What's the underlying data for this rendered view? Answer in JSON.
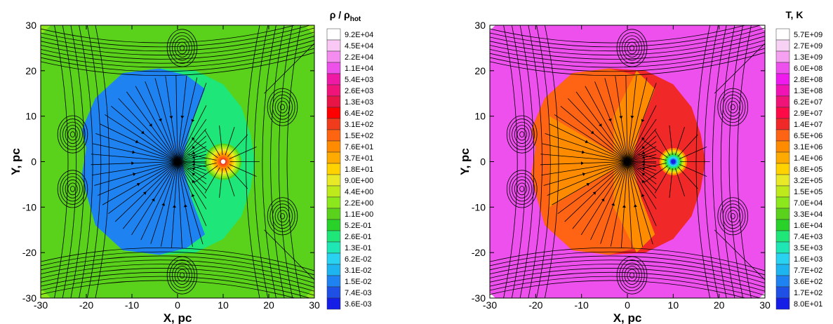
{
  "chart_data": [
    {
      "type": "heatmap",
      "title": "",
      "colorbar_title": "ρ / ρ",
      "colorbar_title_subscript": "hot",
      "xlabel": "X, pc",
      "ylabel": "Y, pc",
      "xlim": [
        -30,
        30
      ],
      "ylim": [
        -30,
        30
      ],
      "xticks": [
        "-30",
        "-20",
        "-10",
        "0",
        "10",
        "20",
        "30"
      ],
      "yticks": [
        "30",
        "20",
        "10",
        "0",
        "-10",
        "-20",
        "-30"
      ],
      "colorbar_levels": [
        "9.2E+04",
        "4.5E+04",
        "2.2E+04",
        "1.1E+04",
        "5.4E+03",
        "2.6E+03",
        "1.3E+03",
        "6.4E+02",
        "3.1E+02",
        "1.5E+02",
        "7.6E+01",
        "3.7E+01",
        "1.8E+01",
        "9.0E+00",
        "4.4E+00",
        "2.2E+00",
        "1.1E+00",
        "5.2E-01",
        "2.6E-01",
        "1.3E-01",
        "6.2E-02",
        "3.1E-02",
        "1.5E-02",
        "7.4E-03",
        "3.6E-03"
      ],
      "colorbar_colors": [
        "#ffffff",
        "#fac8f5",
        "#f58cf0",
        "#ee50ea",
        "#ee1aa5",
        "#f0147a",
        "#e81446",
        "#ff0000",
        "#f03c1c",
        "#ff6410",
        "#ff8c00",
        "#ffaa00",
        "#ffd200",
        "#e8ea28",
        "#beea1c",
        "#8ce81c",
        "#5ad21c",
        "#28d228",
        "#1ee678",
        "#1ee6b4",
        "#28d2f0",
        "#1eb4f0",
        "#1e82f0",
        "#1e50e6",
        "#141ee6"
      ],
      "regions": {
        "background": "1.1E+00",
        "cavity": "1.5E-02",
        "bow_shell": "2.6E-01",
        "core": "9.2E+04"
      },
      "sink_x": 0,
      "sink_y": 0,
      "blob_x": 10,
      "blob_y": 0,
      "vortices": [
        [
          23,
          12
        ],
        [
          23,
          -12
        ],
        [
          1,
          25
        ],
        [
          1,
          -25
        ],
        [
          -23,
          6
        ],
        [
          -23,
          -6
        ]
      ]
    },
    {
      "type": "heatmap",
      "title": "",
      "colorbar_title": "T, K",
      "xlabel": "X, pc",
      "ylabel": "Y, pc",
      "xlim": [
        -30,
        30
      ],
      "ylim": [
        -30,
        30
      ],
      "xticks": [
        "-30",
        "-20",
        "-10",
        "0",
        "10",
        "20",
        "30"
      ],
      "yticks": [
        "30",
        "20",
        "10",
        "0",
        "-10",
        "-20",
        "-30"
      ],
      "colorbar_levels": [
        "5.7E+09",
        "2.7E+09",
        "1.3E+09",
        "6.0E+08",
        "2.8E+08",
        "1.3E+08",
        "6.2E+07",
        "2.9E+07",
        "1.4E+07",
        "6.5E+06",
        "3.1E+06",
        "1.4E+06",
        "6.8E+05",
        "3.2E+05",
        "1.5E+05",
        "7.0E+04",
        "3.3E+04",
        "1.6E+04",
        "7.4E+03",
        "3.5E+03",
        "1.6E+03",
        "7.7E+02",
        "3.6E+02",
        "1.7E+02",
        "8.0E+01"
      ],
      "colorbar_colors": [
        "#ffffff",
        "#f8d2f4",
        "#f5a0f0",
        "#ee50ee",
        "#ee1aee",
        "#f014b4",
        "#f01478",
        "#ff0a46",
        "#f02828",
        "#ff6414",
        "#ff8c00",
        "#ffaa00",
        "#ffd200",
        "#e8ea28",
        "#beea1c",
        "#8ce81c",
        "#5ad21c",
        "#28d228",
        "#1ee678",
        "#1ee6b4",
        "#28d2f0",
        "#1eb4f0",
        "#1e82f0",
        "#1e50e6",
        "#141ee6"
      ],
      "regions": {
        "background": "6.0E+08",
        "cavity": "1.4E+07",
        "inner_fan": "3.1E+06",
        "core": "8.0E+01"
      },
      "sink_x": 0,
      "sink_y": 0,
      "blob_x": 10,
      "blob_y": 0,
      "vortices": [
        [
          23,
          12
        ],
        [
          23,
          -12
        ],
        [
          1,
          25
        ],
        [
          1,
          -25
        ],
        [
          -23,
          6
        ],
        [
          -23,
          -6
        ]
      ]
    }
  ]
}
